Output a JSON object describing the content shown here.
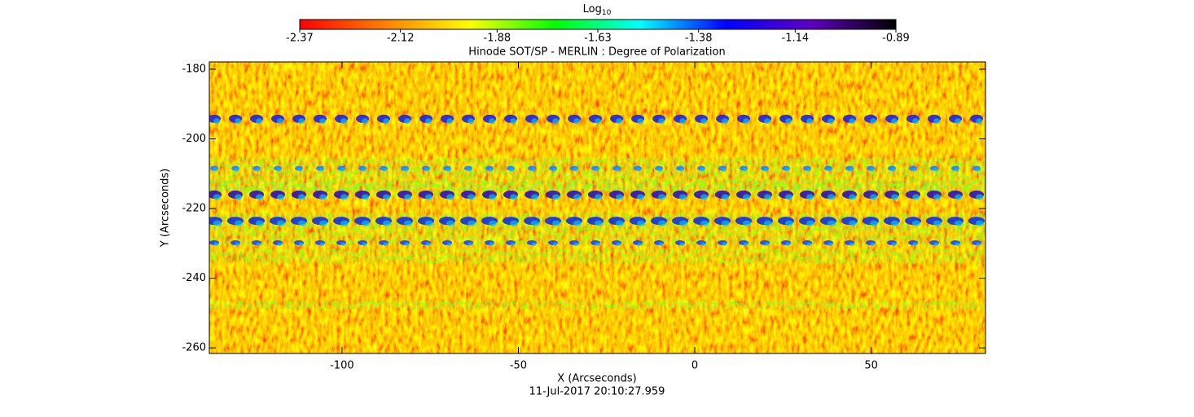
{
  "chart_data": {
    "type": "heatmap",
    "title": "Hinode SOT/SP - MERLIN : Degree of Polarization",
    "subtitle": "11-Jul-2017 20:10:27.959",
    "x_label": "X (Arcseconds)",
    "y_label": "Y (Arcseconds)",
    "xlim": [
      -137.6,
      82.4
    ],
    "xticks": [
      -100,
      -50,
      0,
      50
    ],
    "ylim": [
      -261.6,
      -177.9
    ],
    "yticks": [
      -180,
      -200,
      -220,
      -240,
      -260
    ],
    "colorbar": {
      "label": "Log",
      "label_subscript": "10",
      "lim": [
        -2.37,
        -0.89
      ],
      "ticks": [
        -2.37,
        -2.12,
        -1.88,
        -1.63,
        -1.38,
        -1.14,
        -0.89
      ],
      "colors": [
        "#ff0000",
        "#ff8000",
        "#ffff00",
        "#00ff00",
        "#00ffff",
        "#0000ff",
        "#6000c0",
        "#000000"
      ]
    }
  }
}
